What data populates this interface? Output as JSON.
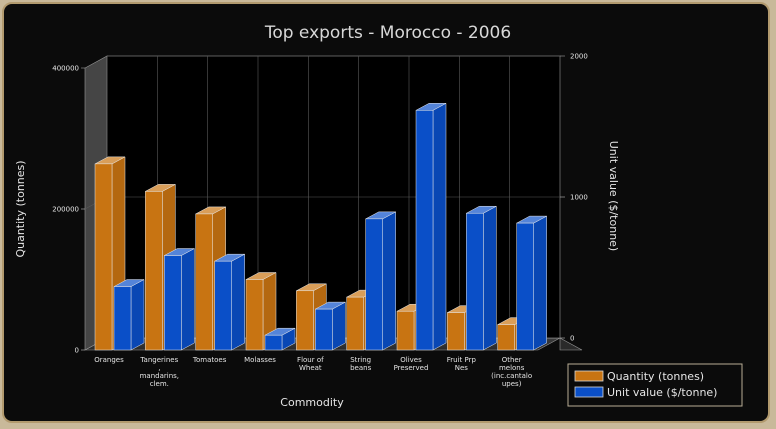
{
  "chart_data": {
    "type": "bar",
    "title": "Top exports - Morocco - 2006",
    "xlabel": "Commodity",
    "ylabel": "Quantity (tonnes)",
    "y2label": "Unit value ($/tonne)",
    "ylim": [
      0,
      400000
    ],
    "y2lim": [
      0,
      2000
    ],
    "yticks": [
      "0",
      "200000",
      "400000"
    ],
    "y2ticks": [
      "0",
      "1000",
      "2000"
    ],
    "grid": true,
    "legend_position": "bottom-right",
    "categories": [
      [
        "Oranges"
      ],
      [
        "Tangerines",
        ",",
        "mandarins,",
        "clem."
      ],
      [
        "Tomatoes"
      ],
      [
        "Molasses"
      ],
      [
        "Flour of",
        "Wheat"
      ],
      [
        "String",
        "beans"
      ],
      [
        "Olives",
        "Preserved"
      ],
      [
        "Fruit Prp",
        "Nes"
      ],
      [
        "Other",
        "melons",
        "(inc.cantalo",
        "upes)"
      ]
    ],
    "series": [
      {
        "name": "Quantity (tonnes)",
        "axis": "left",
        "color": "#c87412",
        "values": [
          264000,
          225000,
          193000,
          100000,
          84000,
          75000,
          55000,
          53000,
          36000
        ]
      },
      {
        "name": "Unit value ($/tonne)",
        "axis": "right",
        "color": "#0a4fc8",
        "values": [
          450,
          670,
          630,
          105,
          290,
          930,
          1700,
          970,
          900
        ]
      }
    ]
  }
}
